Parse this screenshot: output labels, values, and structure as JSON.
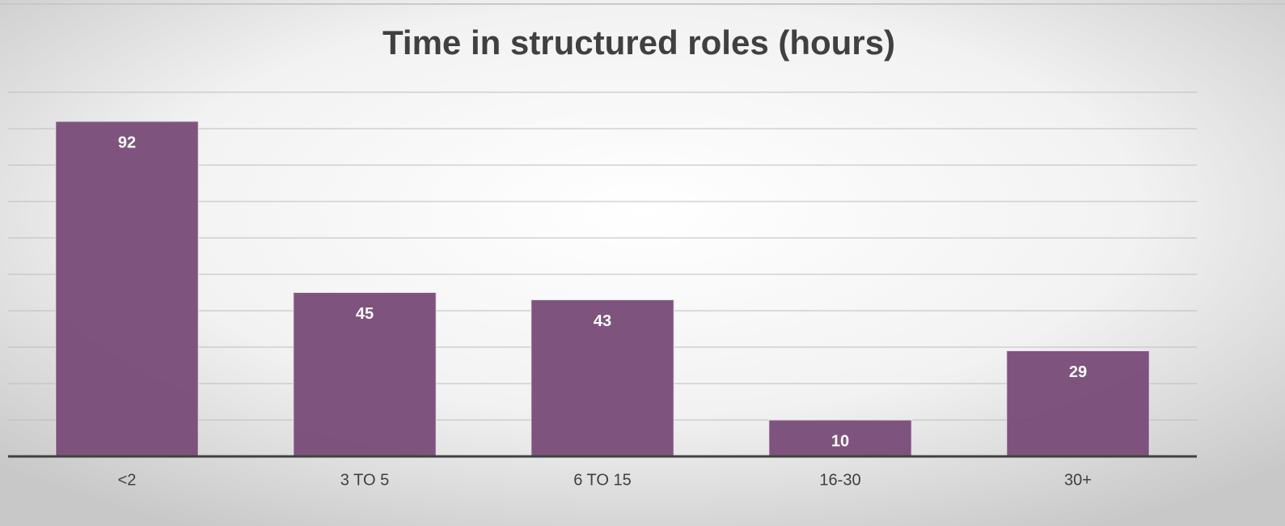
{
  "chart_data": {
    "type": "bar",
    "title": "Time in structured roles (hours)",
    "categories": [
      "<2",
      "3 TO 5",
      "6 TO 15",
      "16-30",
      "30+"
    ],
    "values": [
      92,
      45,
      43,
      10,
      29
    ],
    "color": "#7a4e7a",
    "ylim": [
      0,
      100
    ],
    "yticks": [
      0,
      10,
      20,
      30,
      40,
      50,
      60,
      70,
      80,
      90,
      100
    ],
    "grid": true
  }
}
